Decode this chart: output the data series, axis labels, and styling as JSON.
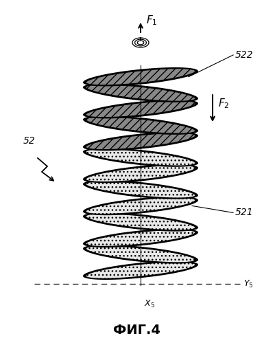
{
  "title": "ФИГ.4",
  "label_52": "52",
  "label_522": "522",
  "label_521": "521",
  "label_F1": "$\\mathit{F_1}$",
  "label_F2": "$\\mathit{F_2}$",
  "label_X5": "$\\mathit{X_5}$",
  "label_Y5": "$\\mathit{Y_5}$",
  "bg_color": "#ffffff",
  "n_coils_dark": 5,
  "n_coils_dot": 8,
  "dark_face_color": "#888888",
  "dot_face_color": "#e8e8e8",
  "line_color": "#000000"
}
